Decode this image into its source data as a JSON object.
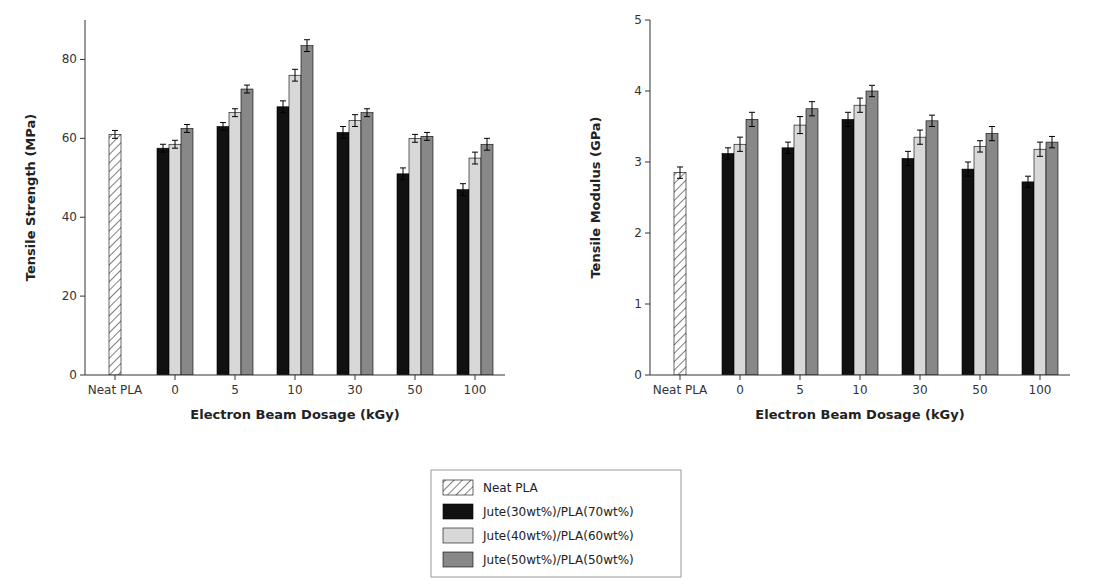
{
  "chart_data": [
    {
      "type": "bar",
      "categories": [
        "Neat PLA",
        "0",
        "5",
        "10",
        "30",
        "50",
        "100"
      ],
      "xlabel": "Electron Beam Dosage (kGy)",
      "ylabel": "Tensile Strength (MPa)",
      "ylim": [
        0,
        90
      ],
      "yticks": [
        0,
        20,
        40,
        60,
        80
      ],
      "grid": false,
      "series": [
        {
          "name": "Neat PLA",
          "color": "#ffffff",
          "values": [
            61.0,
            null,
            null,
            null,
            null,
            null,
            null
          ],
          "errors": [
            1.0,
            null,
            null,
            null,
            null,
            null,
            null
          ]
        },
        {
          "name": "Jute(30wt%)/PLA(70wt%)",
          "color": "#111111",
          "values": [
            null,
            57.5,
            63.0,
            68.0,
            61.5,
            51.0,
            47.0
          ],
          "errors": [
            null,
            1.0,
            1.0,
            1.5,
            1.5,
            1.5,
            1.5
          ]
        },
        {
          "name": "Jute(40wt%)/PLA(60wt%)",
          "color": "#d8d8d8",
          "values": [
            null,
            58.5,
            66.5,
            76.0,
            64.5,
            60.0,
            55.0
          ],
          "errors": [
            null,
            1.0,
            1.0,
            1.5,
            1.5,
            1.0,
            1.5
          ]
        },
        {
          "name": "Jute(50wt%)/PLA(50wt%)",
          "color": "#888888",
          "values": [
            null,
            62.5,
            72.5,
            83.5,
            66.5,
            60.5,
            58.5
          ],
          "errors": [
            null,
            1.0,
            1.0,
            1.5,
            1.0,
            1.0,
            1.5
          ]
        }
      ]
    },
    {
      "type": "bar",
      "categories": [
        "Neat PLA",
        "0",
        "5",
        "10",
        "30",
        "50",
        "100"
      ],
      "xlabel": "Electron Beam Dosage (kGy)",
      "ylabel": "Tensile Modulus (GPa)",
      "ylim": [
        0,
        5
      ],
      "yticks": [
        0,
        1,
        2,
        3,
        4,
        5
      ],
      "grid": false,
      "series": [
        {
          "name": "Neat PLA",
          "color": "#ffffff",
          "values": [
            2.85,
            null,
            null,
            null,
            null,
            null,
            null
          ],
          "errors": [
            0.08,
            null,
            null,
            null,
            null,
            null,
            null
          ]
        },
        {
          "name": "Jute(30wt%)/PLA(70wt%)",
          "color": "#111111",
          "values": [
            null,
            3.12,
            3.2,
            3.6,
            3.05,
            2.9,
            2.72
          ],
          "errors": [
            null,
            0.08,
            0.08,
            0.1,
            0.1,
            0.1,
            0.08
          ]
        },
        {
          "name": "Jute(40wt%)/PLA(60wt%)",
          "color": "#d8d8d8",
          "values": [
            null,
            3.25,
            3.52,
            3.8,
            3.35,
            3.22,
            3.18
          ],
          "errors": [
            null,
            0.1,
            0.12,
            0.1,
            0.1,
            0.08,
            0.1
          ]
        },
        {
          "name": "Jute(50wt%)/PLA(50wt%)",
          "color": "#888888",
          "values": [
            null,
            3.6,
            3.75,
            4.0,
            3.58,
            3.4,
            3.28
          ],
          "errors": [
            null,
            0.1,
            0.1,
            0.08,
            0.08,
            0.1,
            0.08
          ]
        }
      ]
    }
  ]
}
